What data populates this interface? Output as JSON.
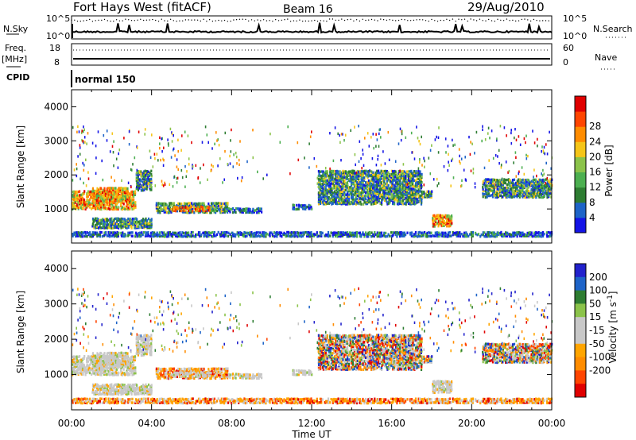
{
  "header": {
    "station": "Fort Hays West (fitACF)",
    "beam": "Beam 16",
    "date": "29/Aug/2010"
  },
  "noise_panel": {
    "left_label": "N.Sky",
    "left_ticks": [
      "10^5",
      "10^0"
    ],
    "right_ticks": [
      "10^5",
      "10^0"
    ],
    "right_label": "N.Search"
  },
  "freq_panel": {
    "left_label": "Freq.",
    "left_unit": "[MHz]",
    "left_ticks": [
      "18",
      "8"
    ],
    "right_ticks": [
      "60",
      "0"
    ],
    "right_label": "Nave"
  },
  "cpid_panel": {
    "label": "CPID",
    "mode": "normal 150"
  },
  "colors": {
    "power_scale": [
      "#1414e6",
      "#1e64c8",
      "#2e7d32",
      "#4caf50",
      "#8bc34a",
      "#f5c518",
      "#ff8c00",
      "#ff4500",
      "#e00000"
    ],
    "velocity_scale": [
      "#2222cc",
      "#1e64c8",
      "#2e7d32",
      "#8bc34a",
      "#c8c8c8",
      "#c8c8c8",
      "#ffa500",
      "#ff8c00",
      "#ff4500",
      "#e00000"
    ]
  },
  "chart_data": [
    {
      "type": "heatmap",
      "name": "power",
      "ylabel": "Slant Range [km]",
      "ylim": [
        0,
        4500
      ],
      "y_ticks": [
        "1000",
        "2000",
        "3000",
        "4000"
      ],
      "x_ticks": [
        "00:00",
        "04:00",
        "08:00",
        "12:00",
        "16:00",
        "20:00",
        "00:00"
      ],
      "colorbar": {
        "label": "Power [dB]",
        "ticks": [
          "4",
          "8",
          "12",
          "16",
          "20",
          "24",
          "28"
        ]
      },
      "regions": [
        {
          "t0": 0.0,
          "t1": 3.2,
          "r0": 950,
          "r1": 1500,
          "level": "high"
        },
        {
          "t0": 1.0,
          "t1": 2.8,
          "r0": 1200,
          "r1": 1600,
          "level": "high"
        },
        {
          "t0": 3.2,
          "t1": 4.0,
          "r0": 1500,
          "r1": 2100,
          "level": "mid"
        },
        {
          "t0": 4.2,
          "t1": 7.8,
          "r0": 850,
          "r1": 1150,
          "level": "mid"
        },
        {
          "t0": 5.0,
          "t1": 7.0,
          "r0": 900,
          "r1": 1050,
          "level": "high"
        },
        {
          "t0": 7.8,
          "t1": 9.5,
          "r0": 850,
          "r1": 1000,
          "level": "low"
        },
        {
          "t0": 11.0,
          "t1": 12.0,
          "r0": 950,
          "r1": 1100,
          "level": "low"
        },
        {
          "t0": 1.0,
          "t1": 4.0,
          "r0": 400,
          "r1": 700,
          "level": "mid"
        },
        {
          "t0": 0.0,
          "t1": 24.0,
          "r0": 150,
          "r1": 300,
          "level": "low"
        },
        {
          "t0": 12.3,
          "t1": 17.5,
          "r0": 1100,
          "r1": 2100,
          "level": "mid"
        },
        {
          "t0": 17.5,
          "t1": 18.0,
          "r0": 1300,
          "r1": 1500,
          "level": "mid"
        },
        {
          "t0": 18.0,
          "t1": 19.0,
          "r0": 450,
          "r1": 800,
          "level": "high"
        },
        {
          "t0": 20.5,
          "t1": 24.0,
          "r0": 1300,
          "r1": 1850,
          "level": "mid"
        }
      ]
    },
    {
      "type": "heatmap",
      "name": "velocity",
      "ylabel": "Slant Range [km]",
      "ylim": [
        0,
        4500
      ],
      "y_ticks": [
        "1000",
        "2000",
        "3000",
        "4000"
      ],
      "x_ticks": [
        "00:00",
        "04:00",
        "08:00",
        "12:00",
        "16:00",
        "20:00",
        "00:00"
      ],
      "xlabel": "Time UT",
      "colorbar": {
        "label": "Velocity [m s^-1]",
        "ticks": [
          "200",
          "100",
          "50",
          "15",
          "-15",
          "-50",
          "-100",
          "-200"
        ]
      },
      "regions": [
        {
          "t0": 0.0,
          "t1": 3.2,
          "r0": 950,
          "r1": 1500,
          "level": "zero"
        },
        {
          "t0": 1.0,
          "t1": 2.8,
          "r0": 1200,
          "r1": 1600,
          "level": "zero"
        },
        {
          "t0": 3.2,
          "t1": 4.0,
          "r0": 1500,
          "r1": 2100,
          "level": "zero"
        },
        {
          "t0": 4.2,
          "t1": 7.8,
          "r0": 850,
          "r1": 1150,
          "level": "neg"
        },
        {
          "t0": 5.0,
          "t1": 7.0,
          "r0": 900,
          "r1": 1050,
          "level": "zero"
        },
        {
          "t0": 7.8,
          "t1": 9.5,
          "r0": 850,
          "r1": 1000,
          "level": "zero"
        },
        {
          "t0": 11.0,
          "t1": 12.0,
          "r0": 950,
          "r1": 1100,
          "level": "zero"
        },
        {
          "t0": 1.0,
          "t1": 4.0,
          "r0": 400,
          "r1": 700,
          "level": "zero"
        },
        {
          "t0": 0.0,
          "t1": 24.0,
          "r0": 150,
          "r1": 300,
          "level": "neg"
        },
        {
          "t0": 12.3,
          "t1": 17.5,
          "r0": 1100,
          "r1": 2100,
          "level": "mix"
        },
        {
          "t0": 17.5,
          "t1": 18.0,
          "r0": 1300,
          "r1": 1500,
          "level": "mix"
        },
        {
          "t0": 18.0,
          "t1": 19.0,
          "r0": 450,
          "r1": 800,
          "level": "zero"
        },
        {
          "t0": 20.5,
          "t1": 24.0,
          "r0": 1300,
          "r1": 1850,
          "level": "mix"
        }
      ]
    }
  ]
}
